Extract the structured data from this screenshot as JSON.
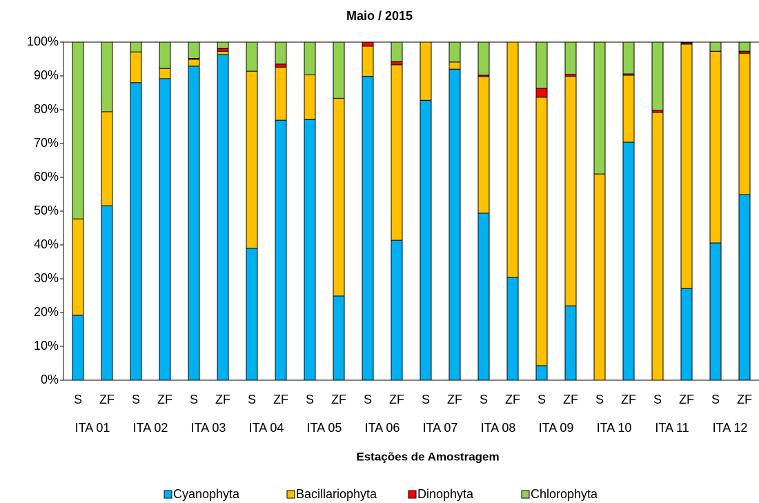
{
  "chart_data": {
    "type": "stacked_bar",
    "title": "Maio / 2015",
    "x_label": "Estações de Amostragem",
    "categories": [
      "S",
      "ZF",
      "S",
      "ZF",
      "S",
      "ZF",
      "S",
      "ZF",
      "S",
      "ZF",
      "S",
      "ZF",
      "S",
      "ZF",
      "S",
      "ZF",
      "S",
      "ZF",
      "S",
      "ZF",
      "S",
      "ZF",
      "S",
      "ZF"
    ],
    "groups": [
      "ITA 01",
      "ITA 02",
      "ITA 03",
      "ITA 04",
      "ITA 05",
      "ITA 06",
      "ITA 07",
      "ITA 08",
      "ITA 09",
      "ITA 10",
      "ITA 11",
      "ITA 12"
    ],
    "series": [
      {
        "name": "Cyanophyta",
        "color": "#00b0f0",
        "values": [
          19.2,
          51.6,
          88,
          89.2,
          92.9,
          96.3,
          39,
          76.9,
          77.1,
          24.9,
          89.9,
          41.4,
          82.8,
          92,
          49.4,
          30.4,
          4.3,
          22,
          0,
          70.4,
          0,
          27.1,
          40.6,
          54.9
        ]
      },
      {
        "name": "Bacillariophyta",
        "color": "#ffc000",
        "values": [
          28.5,
          27.8,
          9.1,
          3,
          2,
          1,
          52.4,
          15.7,
          13.2,
          58.5,
          8.9,
          51.9,
          17.2,
          2.1,
          40.4,
          69.6,
          79.4,
          67.9,
          61,
          19.8,
          79.2,
          72.3,
          56.7,
          41.8
        ]
      },
      {
        "name": "Dinophyta",
        "color": "#ff0000",
        "values": [
          0,
          0,
          0,
          0,
          0.3,
          0.8,
          0,
          0.9,
          0,
          0,
          1.2,
          0.9,
          0,
          0,
          0.4,
          0,
          2.6,
          0.6,
          0,
          0.4,
          0.6,
          0.4,
          0,
          0.6
        ]
      },
      {
        "name": "Chlorophyta",
        "color": "#92d050",
        "values": [
          52.3,
          20.6,
          2.9,
          7.8,
          4.8,
          1.9,
          8.6,
          6.5,
          9.7,
          16.6,
          0,
          5.8,
          0,
          5.9,
          9.8,
          0,
          13.7,
          9.5,
          39,
          9.4,
          20.2,
          0.2,
          2.7,
          2.7
        ]
      }
    ],
    "ylim": [
      0,
      100
    ],
    "yticks": [
      {
        "value": 0,
        "label": "0%"
      },
      {
        "value": 10,
        "label": "10%"
      },
      {
        "value": 20,
        "label": "20%"
      },
      {
        "value": 30,
        "label": "30%"
      },
      {
        "value": 40,
        "label": "40%"
      },
      {
        "value": 50,
        "label": "50%"
      },
      {
        "value": 60,
        "label": "60%"
      },
      {
        "value": 70,
        "label": "70%"
      },
      {
        "value": 80,
        "label": "80%"
      },
      {
        "value": 90,
        "label": "90%"
      },
      {
        "value": 100,
        "label": "100%"
      }
    ],
    "legend": "bottom"
  }
}
